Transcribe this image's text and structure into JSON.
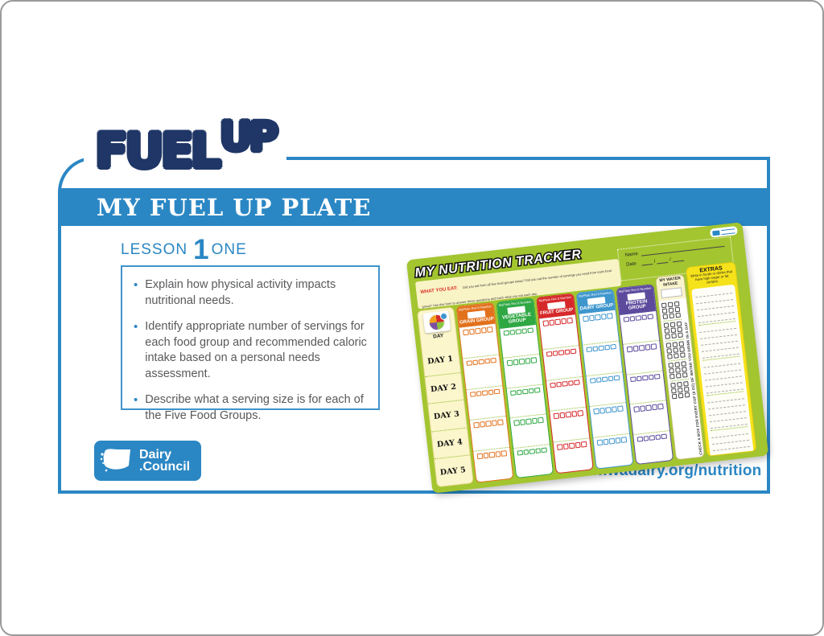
{
  "colors": {
    "accent_blue": "#2b87c4",
    "logo_navy": "#1f3666",
    "tracker_green": "#a3c52f",
    "extras_yellow": "#f6e21b"
  },
  "logo": {
    "word1": "FUEL",
    "word2": "UP"
  },
  "banner": {
    "title": "MY FUEL UP PLATE"
  },
  "lesson": {
    "label": "LESSON",
    "number": "1",
    "word": "ONE"
  },
  "objectives": {
    "items": [
      "Explain how physical activity impacts nutritional needs.",
      "Identify appropriate number of servings for each food group and recommended caloric intake based on a personal needs assessment.",
      "Describe what a serving size is for each of the Five Food Groups."
    ]
  },
  "dairy_council": {
    "line1": "Dairy",
    "line2": ".Council"
  },
  "footer": {
    "url": "www.wadairy.org/nutrition"
  },
  "tracker": {
    "title": "MY NUTRITION TRACKER",
    "intro_heading": "WHAT YOU EAT:",
    "intro_text": "Did you eat from all five food groups today? Did you eat the number of servings you need from each food group? Use this form to answer these questions and track what you eat each day.",
    "instructions": [
      "In each food group listed below, check a box for everything you eat and drink during the day.",
      "Fill in the name of the food or drink below the boxes you have checked.",
      "Compare your totals for the day to the amount you needed, based on the MyPlate calculator."
    ],
    "name_label": "Name",
    "date_label": "Date",
    "recd_label": "MyPlate Rec'd Number",
    "day_header": "DAY",
    "days": [
      "DAY 1",
      "DAY 2",
      "DAY 3",
      "DAY 4",
      "DAY 5"
    ],
    "boxes_per_cell": 5,
    "groups": [
      {
        "name": "GRAIN GROUP",
        "color": "#e2711c"
      },
      {
        "name": "VEGETABLE GROUP",
        "color": "#2fa844"
      },
      {
        "name": "FRUIT GROUP",
        "color": "#d6282a"
      },
      {
        "name": "DAIRY GROUP",
        "color": "#3e96cd"
      },
      {
        "name": "PROTEIN GROUP",
        "color": "#5c4b9d"
      }
    ],
    "water": {
      "header": "MY WATER INTAKE",
      "note": "CHECK A BOX FOR EVERY CUP (8 OZ) OF WATER YOU DRINK IN A DAY",
      "groups": 5,
      "rows_per_group": 3,
      "cols": 3
    },
    "extras": {
      "title": "EXTRAS",
      "subtitle": "Write in foods or drinks that have high sugar or fat content.",
      "line_groups": 5,
      "lines_per_group": 5
    }
  }
}
